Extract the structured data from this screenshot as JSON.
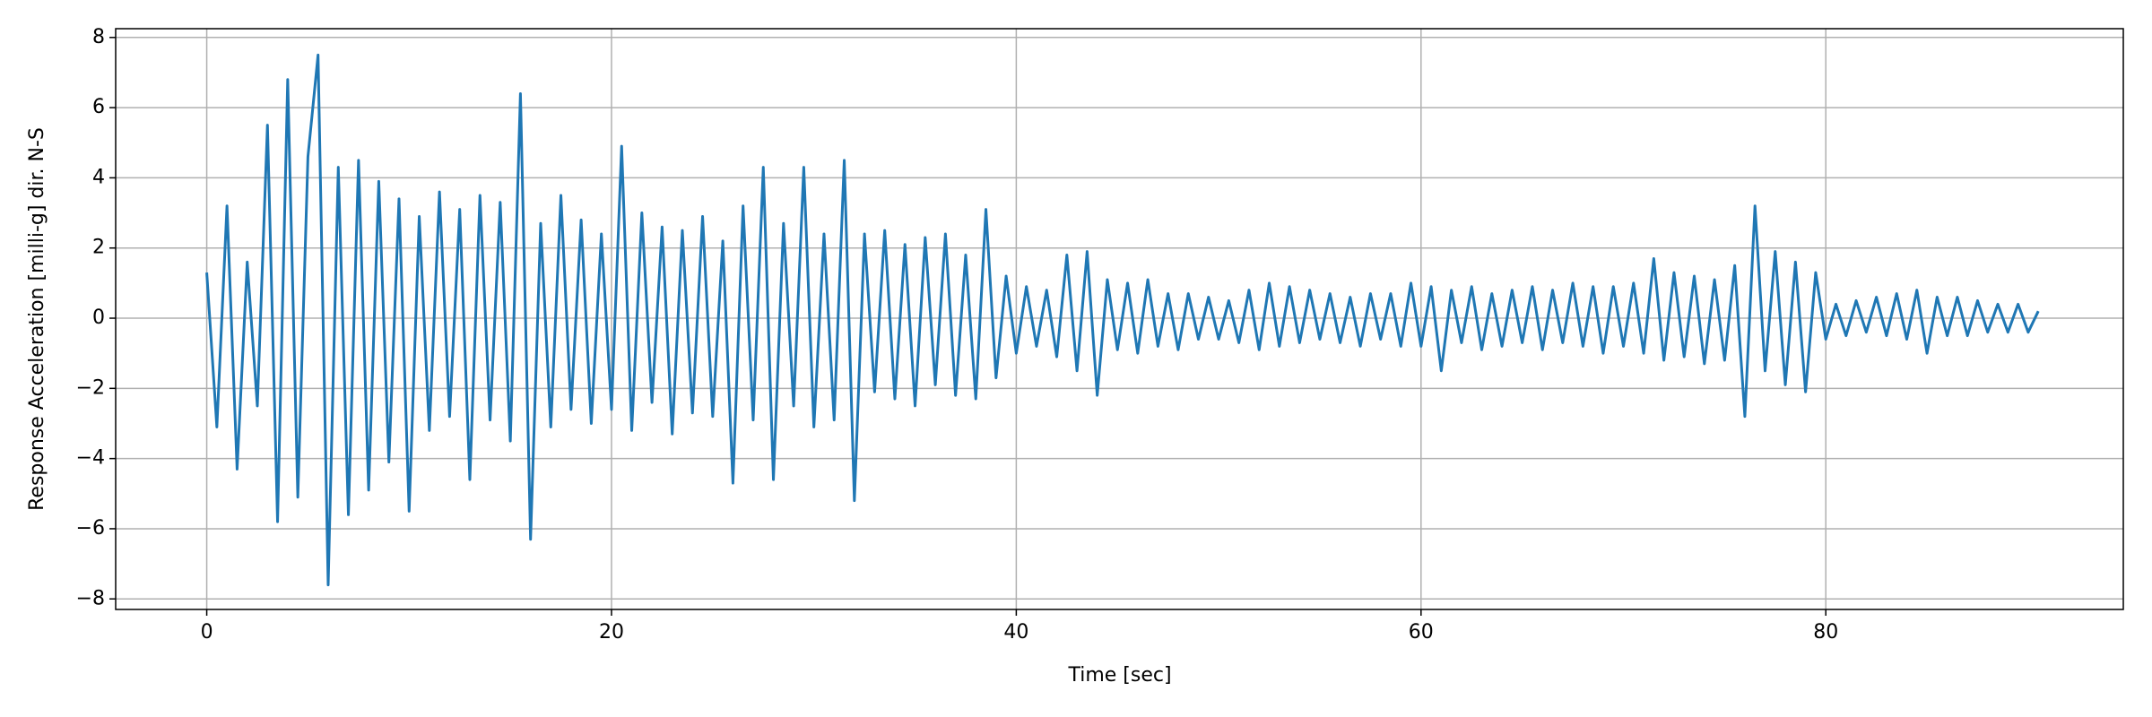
{
  "chart_data": {
    "type": "line",
    "xlabel": "Time [sec]",
    "ylabel": "Response Acceleration [milli-g] dir. N-S",
    "color": "#1f77b4",
    "grid": true,
    "xlim": [
      -4.5,
      94.7
    ],
    "ylim": [
      -8.3,
      8.25
    ],
    "xticks": [
      0,
      20,
      40,
      60,
      80
    ],
    "yticks": [
      {
        "value": -8,
        "label": "−8"
      },
      {
        "value": -6,
        "label": "−6"
      },
      {
        "value": -4,
        "label": "−4"
      },
      {
        "value": -2,
        "label": "−2"
      },
      0,
      2,
      4,
      6,
      8
    ],
    "x": [
      0,
      0.5,
      1,
      1.5,
      2,
      2.5,
      3,
      3.5,
      4,
      4.5,
      5,
      5.5,
      6,
      6.5,
      7,
      7.5,
      8,
      8.5,
      9,
      9.5,
      10,
      10.5,
      11,
      11.5,
      12,
      12.5,
      13,
      13.5,
      14,
      14.5,
      15,
      15.5,
      16,
      16.5,
      17,
      17.5,
      18,
      18.5,
      19,
      19.5,
      20,
      20.5,
      21,
      21.5,
      22,
      22.5,
      23,
      23.5,
      24,
      24.5,
      25,
      25.5,
      26,
      26.5,
      27,
      27.5,
      28,
      28.5,
      29,
      29.5,
      30,
      30.5,
      31,
      31.5,
      32,
      32.5,
      33,
      33.5,
      34,
      34.5,
      35,
      35.5,
      36,
      36.5,
      37,
      37.5,
      38,
      38.5,
      39,
      39.5,
      40,
      40.5,
      41,
      41.5,
      42,
      42.5,
      43,
      43.5,
      44,
      44.5,
      45,
      45.5,
      46,
      46.5,
      47,
      47.5,
      48,
      48.5,
      49,
      49.5,
      50,
      50.5,
      51,
      51.5,
      52,
      52.5,
      53,
      53.5,
      54,
      54.5,
      55,
      55.5,
      56,
      56.5,
      57,
      57.5,
      58,
      58.5,
      59,
      59.5,
      60,
      60.5,
      61,
      61.5,
      62,
      62.5,
      63,
      63.5,
      64,
      64.5,
      65,
      65.5,
      66,
      66.5,
      67,
      67.5,
      68,
      68.5,
      69,
      69.5,
      70,
      70.5,
      71,
      71.5,
      72,
      72.5,
      73,
      73.5,
      74,
      74.5,
      75,
      75.5,
      76,
      76.5,
      77,
      77.5,
      78,
      78.5,
      79,
      79.5,
      80,
      80.5,
      81,
      81.5,
      82,
      82.5,
      83,
      83.5,
      84,
      84.5,
      85,
      85.5,
      86,
      86.5,
      87,
      87.5,
      88,
      88.5,
      89,
      89.5,
      90,
      90.5
    ],
    "values": [
      1.3,
      -3.1,
      3.2,
      -4.3,
      1.6,
      -2.5,
      5.5,
      -5.8,
      6.8,
      -5.1,
      4.6,
      7.5,
      -7.6,
      4.3,
      -5.6,
      4.5,
      -4.9,
      3.9,
      -4.1,
      3.4,
      -5.5,
      2.9,
      -3.2,
      3.6,
      -2.8,
      3.1,
      -4.6,
      3.5,
      -2.9,
      3.3,
      -3.5,
      6.4,
      -6.3,
      2.7,
      -3.1,
      3.5,
      -2.6,
      2.8,
      -3.0,
      2.4,
      -2.6,
      4.9,
      -3.2,
      3.0,
      -2.4,
      2.6,
      -3.3,
      2.5,
      -2.7,
      2.9,
      -2.8,
      2.2,
      -4.7,
      3.2,
      -2.9,
      4.3,
      -4.6,
      2.7,
      -2.5,
      4.3,
      -3.1,
      2.4,
      -2.9,
      4.5,
      -5.2,
      2.4,
      -2.1,
      2.5,
      -2.3,
      2.1,
      -2.5,
      2.3,
      -1.9,
      2.4,
      -2.2,
      1.8,
      -2.3,
      3.1,
      -1.7,
      1.2,
      -1.0,
      0.9,
      -0.8,
      0.8,
      -1.1,
      1.8,
      -1.5,
      1.9,
      -2.2,
      1.1,
      -0.9,
      1.0,
      -1.0,
      1.1,
      -0.8,
      0.7,
      -0.9,
      0.7,
      -0.6,
      0.6,
      -0.6,
      0.5,
      -0.7,
      0.8,
      -0.9,
      1.0,
      -0.8,
      0.9,
      -0.7,
      0.8,
      -0.6,
      0.7,
      -0.7,
      0.6,
      -0.8,
      0.7,
      -0.6,
      0.7,
      -0.8,
      1.0,
      -0.8,
      0.9,
      -1.5,
      0.8,
      -0.7,
      0.9,
      -0.9,
      0.7,
      -0.8,
      0.8,
      -0.7,
      0.9,
      -0.9,
      0.8,
      -0.7,
      1.0,
      -0.8,
      0.9,
      -1.0,
      0.9,
      -0.8,
      1.0,
      -1.0,
      1.7,
      -1.2,
      1.3,
      -1.1,
      1.2,
      -1.3,
      1.1,
      -1.2,
      1.5,
      -2.8,
      3.2,
      -1.5,
      1.9,
      -1.9,
      1.6,
      -2.1,
      1.3,
      -0.6,
      0.4,
      -0.5,
      0.5,
      -0.4,
      0.6,
      -0.5,
      0.7,
      -0.6,
      0.8,
      -1.0,
      0.6,
      -0.5,
      0.6,
      -0.5,
      0.5,
      -0.4,
      0.4,
      -0.4,
      0.4,
      -0.4,
      0.2
    ]
  }
}
